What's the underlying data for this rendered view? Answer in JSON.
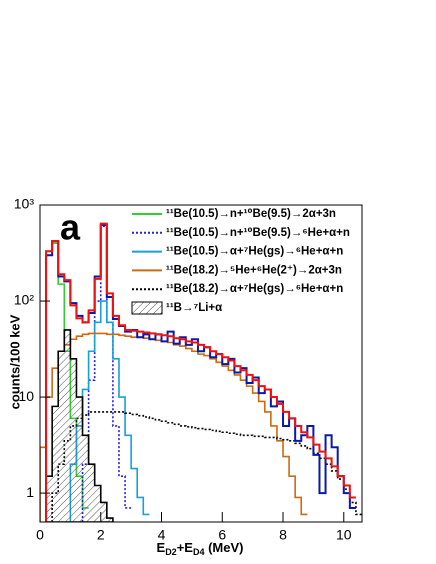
{
  "chart_data": {
    "type": "histogram",
    "annotation": "a",
    "xlabel": [
      "E",
      "D2",
      "+E",
      "D4",
      " (MeV)"
    ],
    "ylabel": "counts/100 keV",
    "log_y": true,
    "xlim": [
      0,
      10.6
    ],
    "ylim": [
      0.5,
      1000
    ],
    "xticks": [
      0,
      2,
      4,
      6,
      8,
      10
    ],
    "yticks": [
      1,
      10,
      {
        "value": 100,
        "label": "10²"
      },
      {
        "value": 1000,
        "label": "10³"
      }
    ],
    "legend": "top-right",
    "bins": [
      0,
      0.2,
      0.4,
      0.6,
      0.8,
      1,
      1.2,
      1.4,
      1.6,
      1.8,
      2,
      2.2,
      2.4,
      2.6,
      2.8,
      3,
      3.2,
      3.4,
      3.6,
      3.8,
      4,
      4.2,
      4.4,
      4.6,
      4.8,
      5,
      5.2,
      5.4,
      5.6,
      5.8,
      6,
      6.2,
      6.4,
      6.6,
      6.8,
      7,
      7.2,
      7.4,
      7.6,
      7.8,
      8,
      8.2,
      8.4,
      8.6,
      8.8,
      9,
      9.2,
      9.4,
      9.6,
      9.8,
      10,
      10.2,
      10.4,
      10.6
    ],
    "series": [
      {
        "name": "¹¹Be(10.5)→n+¹⁰Be(9.5)→2α+3n",
        "color": "#33cc33",
        "dash": false,
        "values": [
          null,
          300,
          400,
          150,
          30,
          6,
          1.5,
          0.7,
          null,
          null,
          null,
          null,
          null,
          null,
          null,
          null,
          null,
          null,
          null,
          null,
          null,
          null,
          null,
          null,
          null,
          null,
          null,
          null,
          null,
          null,
          null,
          null,
          null,
          null,
          null,
          null,
          null,
          null,
          null,
          null,
          null,
          null,
          null,
          null,
          null,
          null,
          null,
          null,
          null,
          null,
          null,
          null,
          null
        ]
      },
      {
        "name": "¹¹Be(10.5)→n+¹⁰Be(9.5)→⁶He+α+n",
        "color": "#2222dd",
        "dash": true,
        "values": [
          null,
          null,
          null,
          null,
          null,
          null,
          null,
          2,
          15,
          100,
          600,
          60,
          5,
          1.5,
          0.7,
          null,
          null,
          null,
          null,
          null,
          null,
          null,
          null,
          null,
          null,
          null,
          null,
          null,
          null,
          null,
          null,
          null,
          null,
          null,
          null,
          null,
          null,
          null,
          null,
          null,
          null,
          null,
          null,
          null,
          null,
          null,
          null,
          null,
          null,
          null,
          null,
          null,
          null
        ]
      },
      {
        "name": "¹¹Be(10.5)→α+⁷He(gs)→⁶He+α+n",
        "color": "#1a9fd6",
        "dash": false,
        "values": [
          null,
          null,
          null,
          null,
          null,
          2,
          5,
          12,
          30,
          60,
          100,
          60,
          25,
          10,
          4,
          1.8,
          0.9,
          0.6,
          null,
          null,
          null,
          null,
          null,
          null,
          null,
          null,
          null,
          null,
          null,
          null,
          null,
          null,
          null,
          null,
          null,
          null,
          null,
          null,
          null,
          null,
          null,
          null,
          null,
          null,
          null,
          null,
          null,
          null,
          null,
          null,
          null,
          null,
          null
        ]
      },
      {
        "name": "¹¹Be(18.2)→⁵He+⁶He(2⁺)→2α+3n",
        "color": "#cc6a10",
        "dash": false,
        "values": [
          3,
          10,
          20,
          30,
          35,
          40,
          43,
          45,
          46,
          46,
          46,
          45,
          45,
          44,
          43,
          42,
          42,
          41,
          40,
          39,
          38,
          37,
          35,
          34,
          32,
          30,
          28,
          27,
          25,
          23,
          21,
          19,
          17,
          15,
          13,
          11,
          9,
          7,
          5,
          3.5,
          2.4,
          1.5,
          0.9,
          0.6,
          null,
          null,
          null,
          null,
          null,
          null,
          null,
          null,
          null
        ]
      },
      {
        "name": "¹¹Be(18.2)→α+⁷He(gs)→⁶He+α+n",
        "color": "#000000",
        "dash": true,
        "values": [
          null,
          null,
          1,
          2,
          3.5,
          5,
          6,
          6.5,
          7,
          7,
          7,
          7,
          7,
          7,
          6.8,
          6.6,
          6.4,
          6.2,
          6,
          5.8,
          5.6,
          5.4,
          5.2,
          5,
          4.9,
          4.8,
          4.7,
          4.6,
          4.5,
          4.4,
          4.3,
          4.2,
          4.1,
          4,
          4,
          3.9,
          3.9,
          3.8,
          3.8,
          3.7,
          3.6,
          3.5,
          3.3,
          3.1,
          2.9,
          2.6,
          2.3,
          2,
          1.7,
          1.4,
          1.1,
          0.8,
          0.6
        ]
      },
      {
        "name": "¹¹B→⁷Li+α",
        "color": "#555555",
        "dash": false,
        "hatched": true,
        "values": [
          null,
          1.5,
          8,
          30,
          50,
          25,
          10,
          4,
          2,
          1.2,
          0.8,
          0.55,
          null,
          null,
          null,
          null,
          null,
          null,
          null,
          null,
          null,
          null,
          null,
          null,
          null,
          null,
          null,
          null,
          null,
          null,
          null,
          null,
          null,
          null,
          null,
          null,
          null,
          null,
          null,
          null,
          null,
          null,
          null,
          null,
          null,
          null,
          null,
          null,
          null,
          null,
          null,
          null,
          null
        ]
      },
      {
        "color": "#0a1aa8",
        "dash": false,
        "width": 2,
        "values": [
          null,
          300,
          420,
          180,
          160,
          95,
          70,
          60,
          75,
          180,
          620,
          110,
          65,
          55,
          48,
          50,
          42,
          45,
          40,
          45,
          38,
          48,
          36,
          42,
          35,
          40,
          30,
          33,
          26,
          28,
          22,
          25,
          18,
          20,
          14,
          16,
          11,
          12,
          8,
          9,
          5,
          6,
          3.5,
          4,
          5,
          2.5,
          1,
          4,
          3,
          1.5,
          1,
          0.7,
          null
        ]
      },
      {
        "color": "#ee1111",
        "dash": false,
        "width": 2,
        "values": [
          null,
          330,
          420,
          190,
          165,
          90,
          66,
          60,
          80,
          170,
          640,
          120,
          70,
          56,
          50,
          49,
          48,
          47,
          46,
          45,
          44,
          43,
          41,
          40,
          38,
          37,
          35,
          33,
          30,
          28,
          26,
          24,
          21,
          19,
          17,
          15,
          13,
          12,
          10,
          8.5,
          7,
          6,
          5,
          4.3,
          3.8,
          3.2,
          2.7,
          2.3,
          1.9,
          1.5,
          1.2,
          0.9,
          null
        ]
      }
    ]
  }
}
